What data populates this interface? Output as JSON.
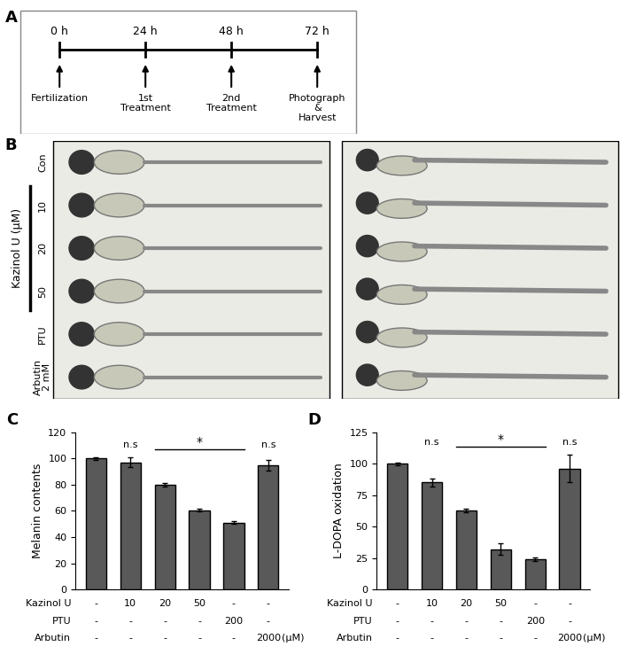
{
  "panels": {
    "A": {
      "label": "A",
      "times": [
        "0 h",
        "24 h",
        "48 h",
        "72 h"
      ],
      "events": [
        "Fertilization",
        "1st\nTreatment",
        "2nd\nTreatment",
        "Photograph\n&\nHarvest"
      ]
    },
    "B": {
      "label": "B",
      "group_label": "Kazinol U (μM)",
      "rows": [
        "Con",
        "10",
        "20",
        "50",
        "PTU",
        "Arbutin\n2 mM"
      ],
      "group_rows": [
        1,
        3
      ]
    }
  },
  "chart_data": [
    {
      "type": "bar",
      "panel_label": "C",
      "y_label": "Melanin contents",
      "categories": [
        null,
        null,
        null,
        null,
        null,
        null
      ],
      "values": [
        100,
        97,
        80,
        60.5,
        51,
        95
      ],
      "errors": [
        1,
        3.5,
        1.5,
        1,
        1,
        4
      ],
      "color": "#595959",
      "ylim": [
        0,
        120
      ],
      "yticks": [
        0,
        20,
        40,
        60,
        80,
        100,
        120
      ],
      "annotations": [
        {
          "text": "n.s",
          "bars": [
            1,
            1
          ]
        },
        {
          "text": "*",
          "bars": [
            2,
            4
          ]
        },
        {
          "text": "n.s",
          "bars": [
            5,
            5
          ]
        }
      ],
      "treatment_rows": [
        {
          "name": "Kazinol U",
          "values": [
            "-",
            "10",
            "20",
            "50",
            "-",
            "-"
          ]
        },
        {
          "name": "PTU",
          "values": [
            "-",
            "-",
            "-",
            "-",
            "200",
            "-"
          ]
        },
        {
          "name": "Arbutin",
          "values": [
            "-",
            "-",
            "-",
            "-",
            "-",
            "2000"
          ]
        }
      ],
      "unit": "(μM)"
    },
    {
      "type": "bar",
      "panel_label": "D",
      "y_label": "L-DOPA oxidation",
      "categories": [
        null,
        null,
        null,
        null,
        null,
        null
      ],
      "values": [
        100,
        85,
        63,
        32,
        24,
        96
      ],
      "errors": [
        1,
        3,
        1.5,
        4.5,
        1.5,
        11
      ],
      "color": "#595959",
      "ylim": [
        0,
        125
      ],
      "yticks": [
        0,
        25,
        50,
        75,
        100,
        125
      ],
      "annotations": [
        {
          "text": "n.s",
          "bars": [
            1,
            1
          ]
        },
        {
          "text": "*",
          "bars": [
            2,
            4
          ]
        },
        {
          "text": "n.s",
          "bars": [
            5,
            5
          ]
        }
      ],
      "treatment_rows": [
        {
          "name": "Kazinol U",
          "values": [
            "-",
            "10",
            "20",
            "50",
            "-",
            "-"
          ]
        },
        {
          "name": "PTU",
          "values": [
            "-",
            "-",
            "-",
            "-",
            "200",
            "-"
          ]
        },
        {
          "name": "Arbutin",
          "values": [
            "-",
            "-",
            "-",
            "-",
            "-",
            "2000"
          ]
        }
      ],
      "unit": "(μM)"
    }
  ]
}
